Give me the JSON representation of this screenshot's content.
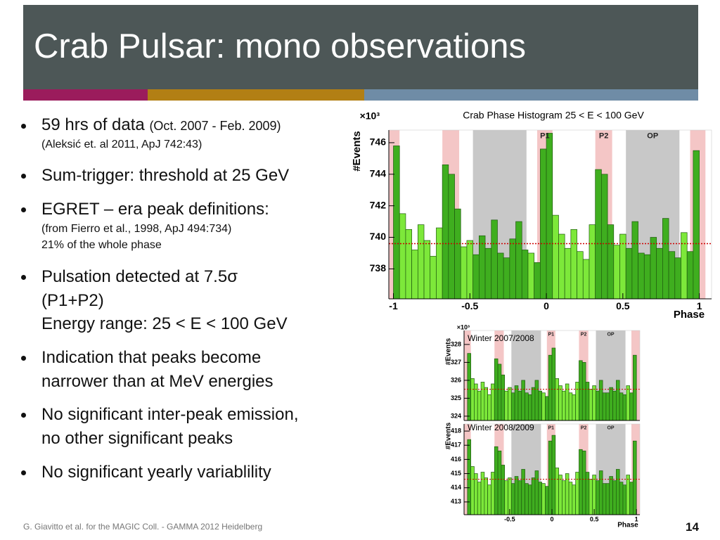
{
  "slide": {
    "title": "Crab Pulsar: mono observations",
    "bullets": [
      {
        "lines": [
          "59 hrs of data"
        ],
        "inline_note": "(Oct. 2007 - Feb. 2009)",
        "notes": [
          "(Aleksić et. al 2011, ApJ 742:43)"
        ]
      },
      {
        "lines": [
          "Sum-trigger: threshold at 25 GeV"
        ]
      },
      {
        "lines": [
          "EGRET – era peak definitions:"
        ],
        "notes": [
          "(from Fierro et al., 1998, ApJ 494:734)",
          "21% of the whole phase"
        ]
      },
      {
        "lines": [
          "Pulsation detected at 7.5σ",
          "(P1+P2)",
          "Energy range: 25 < E < 100 GeV"
        ]
      },
      {
        "lines": [
          "Indication that peaks become",
          "narrower than at MeV energies"
        ]
      },
      {
        "lines": [
          "No significant inter-peak emission,",
          "no other significant peaks"
        ]
      },
      {
        "lines": [
          "No significant yearly variablility"
        ]
      }
    ],
    "footer": "G. Giavitto et al. for the MAGIC Coll. - GAMMA 2012 Heidelberg",
    "page_number": "14"
  },
  "chart_data": [
    {
      "type": "histogram",
      "title": "Crab Phase Histogram 25 < E < 100 GeV",
      "y_label": "#Events",
      "y_multiplier": "×10³",
      "x_label": "Phase",
      "color": "#7de83a",
      "region_bar_color": "#3fae1f",
      "bins": [
        -1,
        -0.96,
        -0.92,
        -0.88,
        -0.84,
        -0.8,
        -0.76,
        -0.72,
        -0.68,
        -0.64,
        -0.6,
        -0.56,
        -0.52,
        -0.48,
        -0.44,
        -0.4,
        -0.36,
        -0.32,
        -0.28,
        -0.24,
        -0.2,
        -0.16,
        -0.12,
        -0.08,
        -0.04,
        0,
        0.04,
        0.08,
        0.12,
        0.16,
        0.2,
        0.24,
        0.28,
        0.32,
        0.36,
        0.4,
        0.44,
        0.48,
        0.52,
        0.56,
        0.6,
        0.64,
        0.68,
        0.72,
        0.76,
        0.8,
        0.84,
        0.88,
        0.92,
        0.96,
        1
      ],
      "values": [
        745.8,
        741.5,
        740.5,
        739.2,
        740.8,
        739.8,
        738.8,
        740.6,
        744.6,
        744.0,
        741.8,
        739.4,
        739.8,
        738.9,
        740.1,
        739.3,
        741.1,
        739.0,
        738.7,
        739.9,
        741.0,
        739.2,
        739.0,
        738.4,
        745.6,
        746.6,
        741.4,
        740.2,
        739.3,
        740.5,
        739.1,
        738.6,
        740.8,
        744.3,
        744.0,
        740.8,
        739.5,
        740.2,
        739.3,
        741.0,
        739.0,
        738.9,
        740.0,
        739.3,
        741.2,
        739.1,
        738.7,
        740.3,
        739.1,
        745.5
      ],
      "baseline": 739.6,
      "baseline_color": "#cc0000",
      "regions": [
        {
          "label": "P1",
          "color": "#f4c6c6",
          "ranges": [
            [
              -0.06,
              0.04
            ],
            [
              0.94,
              1.04
            ],
            [
              -1.06,
              -0.96
            ]
          ]
        },
        {
          "label": "P2",
          "color": "#f4c6c6",
          "ranges": [
            [
              0.32,
              0.43
            ],
            [
              -0.68,
              -0.57
            ]
          ]
        },
        {
          "label": "OP",
          "color": "#c8c8c8",
          "ranges": [
            [
              0.52,
              0.87
            ],
            [
              -0.48,
              -0.13
            ]
          ]
        }
      ],
      "xlim": [
        -1.03,
        1.08
      ],
      "ylim": [
        736.1,
        746.8
      ],
      "xticks": [
        -1,
        -0.5,
        0,
        0.5,
        1
      ],
      "yticks": [
        738,
        740,
        742,
        744,
        746
      ]
    },
    {
      "type": "histogram",
      "annotation": "Winter 2007/2008",
      "y_label": "#Events",
      "y_multiplier": "×10³",
      "color": "#7de83a",
      "region_bar_color": "#3fae1f",
      "bins": [
        -1,
        -0.96,
        -0.92,
        -0.88,
        -0.84,
        -0.8,
        -0.76,
        -0.72,
        -0.68,
        -0.64,
        -0.6,
        -0.56,
        -0.52,
        -0.48,
        -0.44,
        -0.4,
        -0.36,
        -0.32,
        -0.28,
        -0.24,
        -0.2,
        -0.16,
        -0.12,
        -0.08,
        -0.04,
        0,
        0.04,
        0.08,
        0.12,
        0.16,
        0.2,
        0.24,
        0.28,
        0.32,
        0.36,
        0.4,
        0.44,
        0.48,
        0.52,
        0.56,
        0.6,
        0.64,
        0.68,
        0.72,
        0.76,
        0.8,
        0.84,
        0.88,
        0.92,
        0.96,
        1
      ],
      "values": [
        327.5,
        326.1,
        325.8,
        325.4,
        325.9,
        325.6,
        325.2,
        325.8,
        327.2,
        326.9,
        326.3,
        325.4,
        325.6,
        325.3,
        325.7,
        325.4,
        326.0,
        325.3,
        325.2,
        325.6,
        326.0,
        325.4,
        325.3,
        325.1,
        327.4,
        327.8,
        326.1,
        325.7,
        325.4,
        325.8,
        325.3,
        325.2,
        325.9,
        327.1,
        327.0,
        325.9,
        325.5,
        325.7,
        325.4,
        326.0,
        325.3,
        325.3,
        325.6,
        325.4,
        326.0,
        325.3,
        325.2,
        325.7,
        325.3,
        327.4
      ],
      "baseline": 325.5,
      "baseline_color": "#cc0000",
      "regions": [
        {
          "label": "P1",
          "color": "#f4c6c6",
          "ranges": [
            [
              -0.06,
              0.04
            ],
            [
              0.94,
              1.04
            ],
            [
              -1.06,
              -0.96
            ]
          ]
        },
        {
          "label": "P2",
          "color": "#f4c6c6",
          "ranges": [
            [
              0.32,
              0.43
            ],
            [
              -0.68,
              -0.57
            ]
          ]
        },
        {
          "label": "OP",
          "color": "#c8c8c8",
          "ranges": [
            [
              0.52,
              0.87
            ],
            [
              -0.48,
              -0.13
            ]
          ]
        }
      ],
      "xlim": [
        -1.04,
        1.04
      ],
      "ylim": [
        323.76,
        328.78
      ],
      "yticks": [
        324,
        325,
        326,
        327,
        328
      ]
    },
    {
      "type": "histogram",
      "annotation": "Winter 2008/2009",
      "y_label": "#Events",
      "x_label": "Phase",
      "color": "#7de83a",
      "region_bar_color": "#3fae1f",
      "bins": [
        -1,
        -0.96,
        -0.92,
        -0.88,
        -0.84,
        -0.8,
        -0.76,
        -0.72,
        -0.68,
        -0.64,
        -0.6,
        -0.56,
        -0.52,
        -0.48,
        -0.44,
        -0.4,
        -0.36,
        -0.32,
        -0.28,
        -0.24,
        -0.2,
        -0.16,
        -0.12,
        -0.08,
        -0.04,
        0,
        0.04,
        0.08,
        0.12,
        0.16,
        0.2,
        0.24,
        0.28,
        0.32,
        0.36,
        0.4,
        0.44,
        0.48,
        0.52,
        0.56,
        0.6,
        0.64,
        0.68,
        0.72,
        0.76,
        0.8,
        0.84,
        0.88,
        0.92,
        0.96,
        1
      ],
      "values": [
        417.4,
        415.5,
        415.0,
        414.4,
        415.1,
        414.7,
        414.2,
        415.1,
        416.9,
        416.6,
        415.6,
        414.5,
        414.7,
        414.3,
        414.8,
        414.5,
        415.3,
        414.3,
        414.2,
        414.7,
        415.2,
        414.4,
        414.3,
        414.1,
        417.3,
        417.7,
        415.4,
        414.9,
        414.5,
        415.0,
        414.4,
        414.2,
        415.1,
        416.7,
        416.6,
        415.1,
        414.6,
        414.9,
        414.5,
        415.2,
        414.3,
        414.3,
        414.8,
        414.5,
        415.3,
        414.4,
        414.2,
        414.9,
        414.4,
        417.3
      ],
      "baseline": 414.6,
      "baseline_color": "#cc0000",
      "regions": [
        {
          "label": "P1",
          "color": "#f4c6c6",
          "ranges": [
            [
              -0.06,
              0.04
            ],
            [
              0.94,
              1.04
            ],
            [
              -1.06,
              -0.96
            ]
          ]
        },
        {
          "label": "P2",
          "color": "#f4c6c6",
          "ranges": [
            [
              0.32,
              0.43
            ],
            [
              -0.68,
              -0.57
            ]
          ]
        },
        {
          "label": "OP",
          "color": "#c8c8c8",
          "ranges": [
            [
              0.52,
              0.87
            ],
            [
              -0.48,
              -0.13
            ]
          ]
        }
      ],
      "xlim": [
        -1.04,
        1.04
      ],
      "ylim": [
        412.1,
        418.5
      ],
      "xticks": [
        -0.5,
        0,
        0.5,
        1
      ],
      "yticks": [
        413,
        414,
        415,
        416,
        417,
        418
      ]
    }
  ]
}
